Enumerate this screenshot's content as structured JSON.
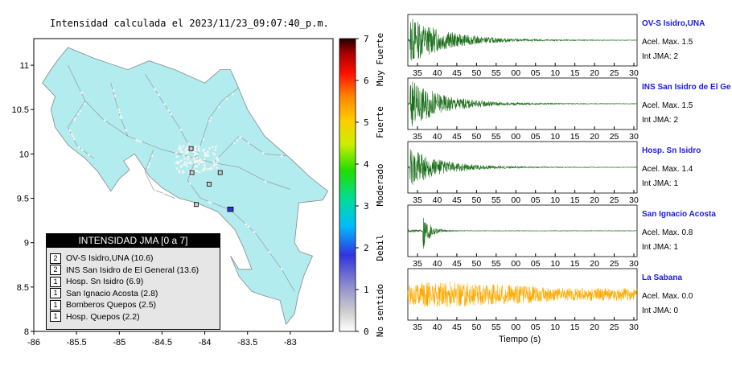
{
  "title": "Intensidad calculada el 2023/11/23_09:07:40_p.m.",
  "map": {
    "x_ticks": [
      "-86",
      "-85.5",
      "-85",
      "-84.5",
      "-84",
      "-83.5",
      "-83"
    ],
    "y_ticks": [
      "11",
      "10.5",
      "10",
      "9.5",
      "9",
      "8.5",
      "8"
    ],
    "lon_range": [
      -86,
      -82.5
    ],
    "lat_range": [
      8,
      11.3
    ],
    "land_color": "#b2ecee",
    "sea_color": "#ffffff",
    "stations": [
      {
        "lon": -84.16,
        "lat": 10.06,
        "intensity": 1
      },
      {
        "lon": -84.15,
        "lat": 9.79,
        "intensity": 1
      },
      {
        "lon": -83.82,
        "lat": 9.79,
        "intensity": 1
      },
      {
        "lon": -83.95,
        "lat": 9.66,
        "intensity": 1
      },
      {
        "lon": -84.1,
        "lat": 9.43,
        "intensity": 1
      },
      {
        "lon": -83.7,
        "lat": 9.37,
        "intensity": 2
      }
    ]
  },
  "colorbar": {
    "ticks": [
      "0",
      "1",
      "2",
      "3",
      "4",
      "5",
      "6",
      "7"
    ],
    "labels": [
      {
        "text": "No sentido",
        "value": 0.5
      },
      {
        "text": "Debil",
        "value": 2
      },
      {
        "text": "Moderado",
        "value": 3.5
      },
      {
        "text": "Fuerte",
        "value": 5
      },
      {
        "text": "Muy Fuerte",
        "value": 6.5
      }
    ]
  },
  "legend": {
    "title": "INTENSIDAD JMA [0 a 7]",
    "rows": [
      {
        "level": "2",
        "text": "OV-S Isidro,UNA (10.6)"
      },
      {
        "level": "2",
        "text": "INS San Isidro de El General (13.6)"
      },
      {
        "level": "1",
        "text": "Hosp. Sn Isidro (6.9)"
      },
      {
        "level": "1",
        "text": "San Ignacio Acosta (2.8)"
      },
      {
        "level": "1",
        "text": "Bomberos Quepos (2.5)"
      },
      {
        "level": "1",
        "text": "Hosp. Quepos (2.2)"
      }
    ]
  },
  "traces": {
    "tick_labels": [
      "35",
      "40",
      "45",
      "50",
      "55",
      "00",
      "05",
      "10",
      "15",
      "20",
      "25",
      "30"
    ],
    "xlabel": "Tiempo (s)",
    "panels": [
      {
        "name": "OV-S Isidro,UNA",
        "acel": "Acel. Max. 1.5",
        "jma": "Int JMA: 2",
        "color": "#1a6e1a",
        "amp": 1.0,
        "onset": 0.01,
        "decay": 0.16
      },
      {
        "name": "INS San Isidro de El Ge",
        "acel": "Acel. Max. 1.5",
        "jma": "Int JMA: 2",
        "color": "#1a6e1a",
        "amp": 1.0,
        "onset": 0.01,
        "decay": 0.15
      },
      {
        "name": "Hosp. Sn Isidro",
        "acel": "Acel. Max. 1.4",
        "jma": "Int JMA: 1",
        "color": "#1a6e1a",
        "amp": 0.8,
        "onset": 0.01,
        "decay": 0.14
      },
      {
        "name": "San Ignacio Acosta",
        "acel": "Acel. Max. 0.8",
        "jma": "Int JMA: 1",
        "color": "#1a6e1a",
        "amp": 0.9,
        "onset": 0.065,
        "decay": 0.03
      },
      {
        "name": "La Sabana",
        "acel": "Acel. Max. 0.0",
        "jma": "Int JMA: 0",
        "color": "#ffaa00",
        "amp": 0.55,
        "onset": 0.0,
        "decay": 0.6
      }
    ]
  }
}
